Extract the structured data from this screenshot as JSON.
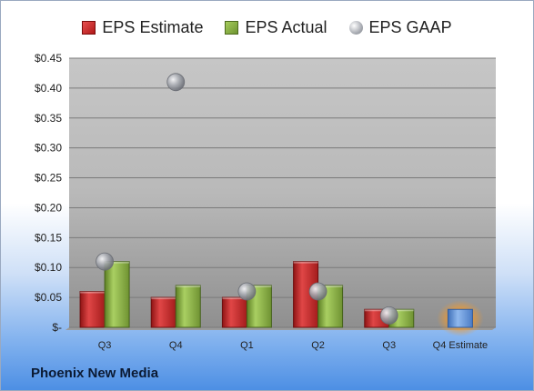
{
  "company": "Phoenix New Media",
  "legend": {
    "estimate": "EPS Estimate",
    "actual": "EPS Actual",
    "gaap": "EPS GAAP"
  },
  "chart_data": {
    "type": "bar",
    "categories": [
      "Q3",
      "Q4",
      "Q1",
      "Q2",
      "Q3",
      "Q4 Estimate"
    ],
    "series": [
      {
        "name": "EPS Estimate",
        "values": [
          0.06,
          0.05,
          0.05,
          0.11,
          0.03,
          null
        ]
      },
      {
        "name": "EPS Actual",
        "values": [
          0.11,
          0.07,
          0.07,
          0.07,
          0.03,
          null
        ]
      },
      {
        "name": "EPS GAAP",
        "values": [
          0.11,
          0.41,
          0.06,
          0.06,
          0.02,
          null
        ]
      }
    ],
    "forecast": {
      "category": "Q4 Estimate",
      "value": 0.03
    },
    "ylim": [
      0,
      0.45
    ],
    "yticks": [
      0,
      0.05,
      0.1,
      0.15,
      0.2,
      0.25,
      0.3,
      0.35,
      0.4,
      0.45
    ],
    "ytick_labels": [
      "$-",
      "$0.05",
      "$0.10",
      "$0.15",
      "$0.20",
      "$0.25",
      "$0.30",
      "$0.35",
      "$0.40",
      "$0.45"
    ],
    "grid": true,
    "legend_position": "top",
    "colors": {
      "estimate": "#c62a2a",
      "actual": "#8db24a",
      "gaap": "#a0a3aa",
      "forecast": "#5b8ed6",
      "forecast_glow": "#f0a030"
    }
  }
}
